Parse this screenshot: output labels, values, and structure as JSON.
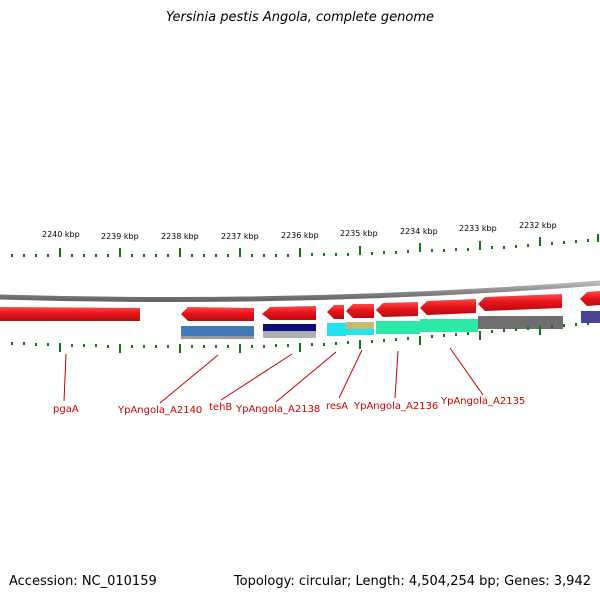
{
  "title": "Yersinia pestis Angola, complete genome",
  "footer": {
    "accession": "Accession: NC_010159",
    "summary": "Topology: circular; Length: 4,504,254 bp; Genes: 3,942"
  },
  "colors": {
    "tick": "#117711",
    "gene_forward": "#e8151b",
    "gene_label": "#cc0000",
    "backbone": "#8a8a8a"
  },
  "ruler_labels": [
    "2240 kbp",
    "2239 kbp",
    "2238 kbp",
    "2237 kbp",
    "2236 kbp",
    "2235 kbp",
    "2234 kbp",
    "2233 kbp",
    "2232 kbp"
  ],
  "gene_labels": [
    "pgaA",
    "YpAngola_A2140",
    "tehB",
    "YpAngola_A2138",
    "resA",
    "YpAngola_A2136",
    "YpAngola_A2135"
  ]
}
